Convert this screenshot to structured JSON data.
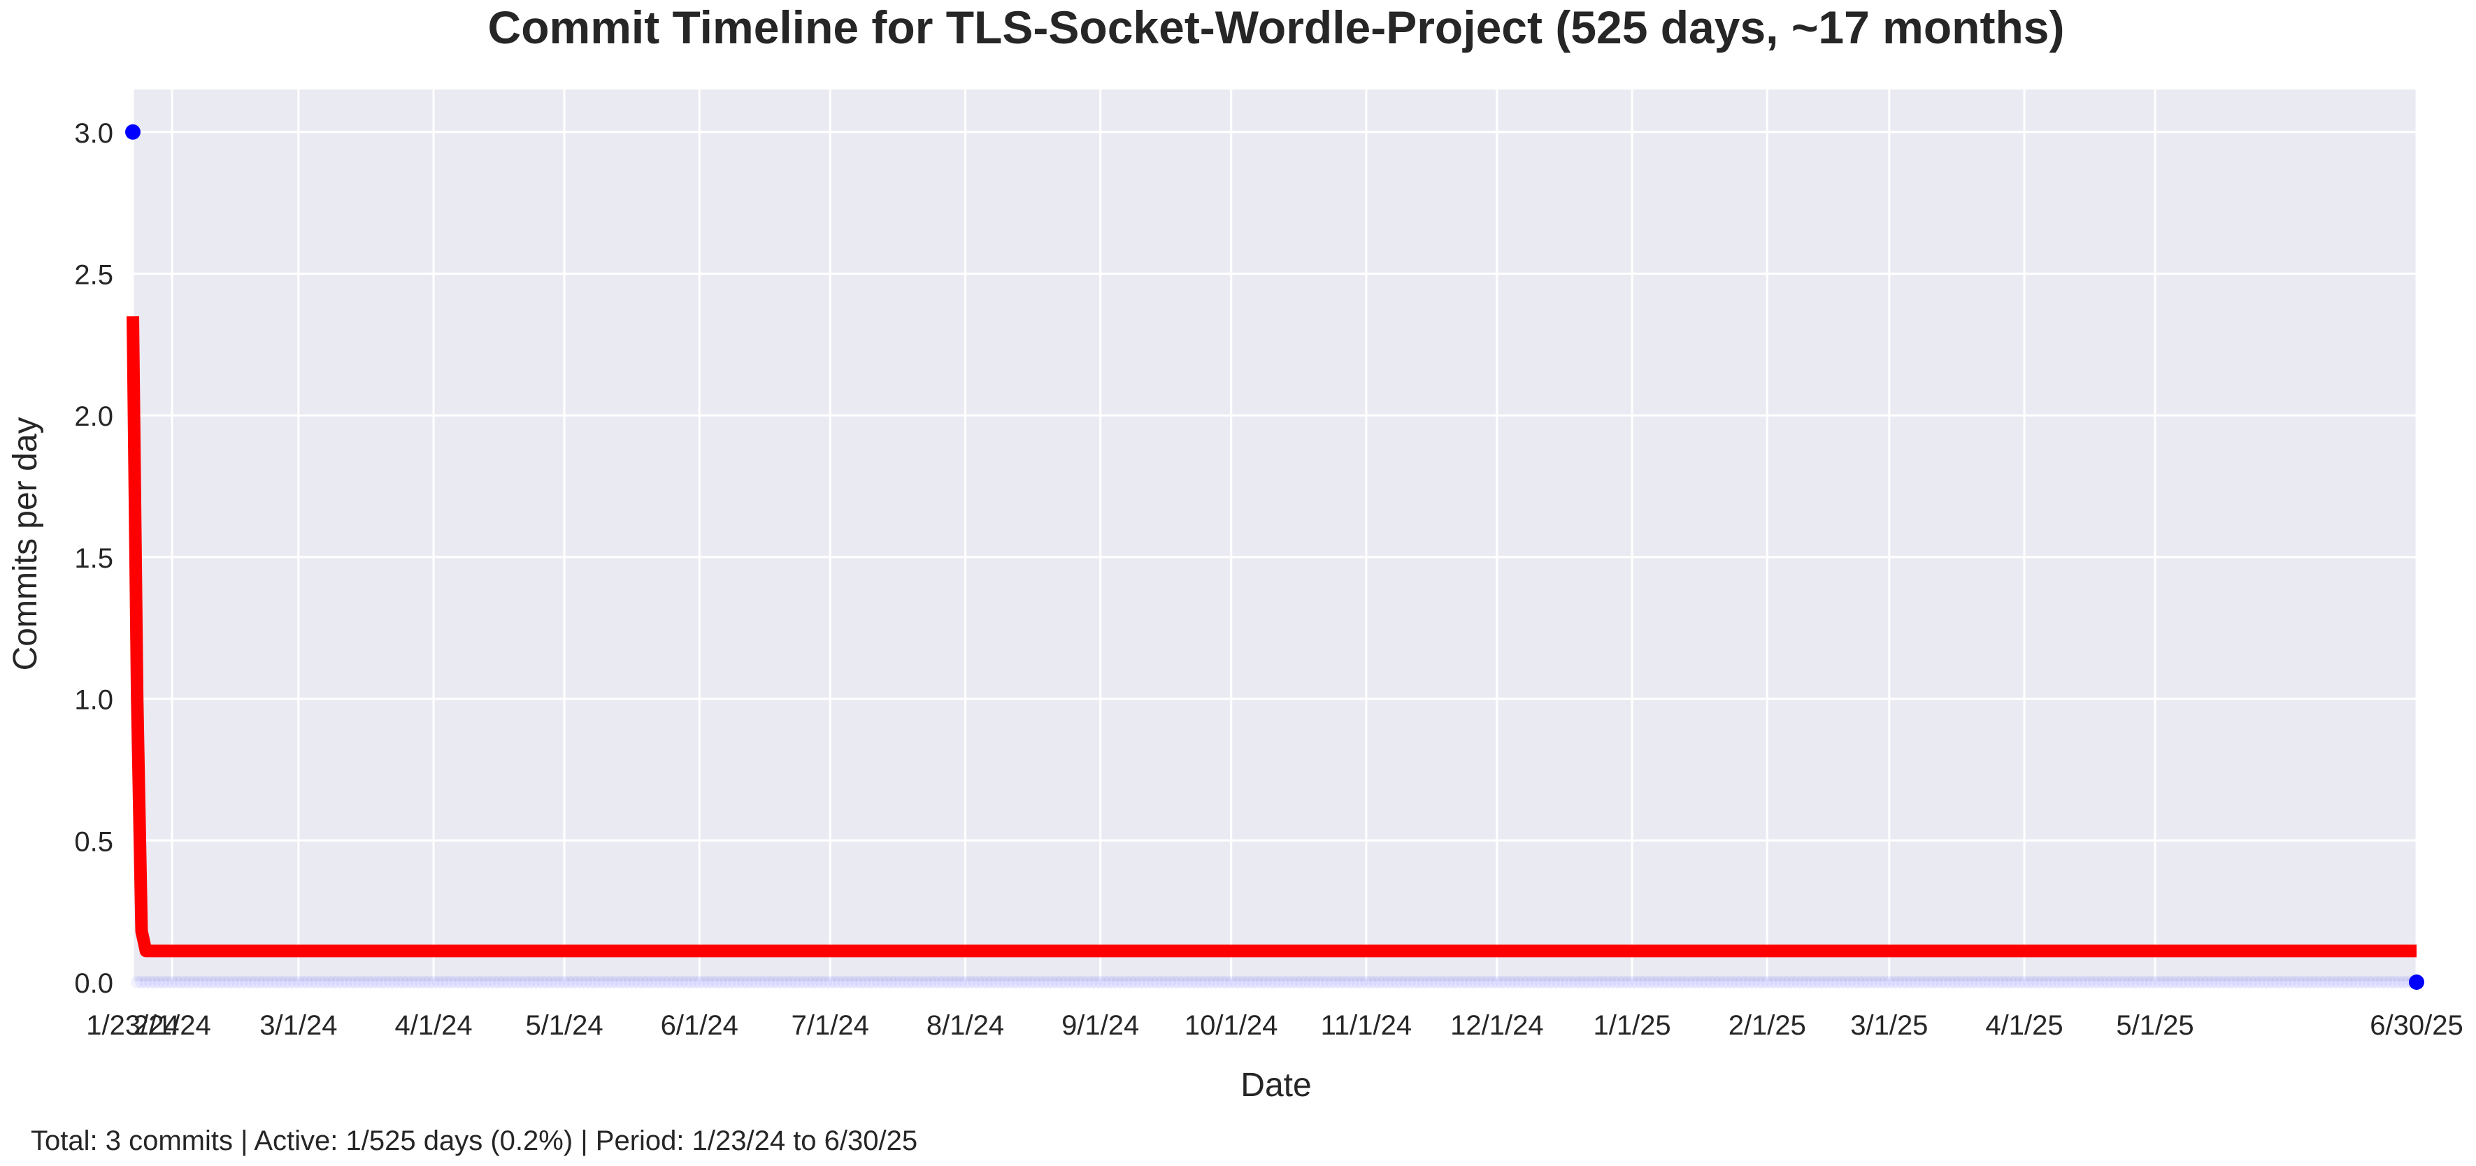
{
  "chart_data": {
    "type": "line",
    "title": "Commit Timeline for TLS-Socket-Wordle-Project (525 days, ~17 months)",
    "xlabel": "Date",
    "ylabel": "Commits per day",
    "x_range": [
      "2024-01-23",
      "2025-06-30"
    ],
    "ylim": [
      0,
      3.15
    ],
    "y_ticks": [
      0.0,
      0.5,
      1.0,
      1.5,
      2.0,
      2.5,
      3.0
    ],
    "y_tick_labels": [
      "0.0",
      "0.5",
      "1.0",
      "1.5",
      "2.0",
      "2.5",
      "3.0"
    ],
    "x_ticks": [
      {
        "date": "2024-01-23",
        "label": "1/23/24"
      },
      {
        "date": "2024-02-01",
        "label": "2/1/24"
      },
      {
        "date": "2024-03-01",
        "label": "3/1/24"
      },
      {
        "date": "2024-04-01",
        "label": "4/1/24"
      },
      {
        "date": "2024-05-01",
        "label": "5/1/24"
      },
      {
        "date": "2024-06-01",
        "label": "6/1/24"
      },
      {
        "date": "2024-07-01",
        "label": "7/1/24"
      },
      {
        "date": "2024-08-01",
        "label": "8/1/24"
      },
      {
        "date": "2024-09-01",
        "label": "9/1/24"
      },
      {
        "date": "2024-10-01",
        "label": "10/1/24"
      },
      {
        "date": "2024-11-01",
        "label": "11/1/24"
      },
      {
        "date": "2024-12-01",
        "label": "12/1/24"
      },
      {
        "date": "2025-01-01",
        "label": "1/1/25"
      },
      {
        "date": "2025-02-01",
        "label": "2/1/25"
      },
      {
        "date": "2025-03-01",
        "label": "3/1/25"
      },
      {
        "date": "2025-04-01",
        "label": "4/1/25"
      },
      {
        "date": "2025-05-01",
        "label": "5/1/25"
      },
      {
        "date": "2025-06-30",
        "label": "6/30/25"
      }
    ],
    "grid": true,
    "series": [
      {
        "kind": "daily-points",
        "color": "#0000ff",
        "nonzero_points": [
          {
            "x": "2024-01-23",
            "y": 3
          }
        ],
        "zero_days_between": [
          "2024-01-24",
          "2025-06-29"
        ],
        "last_point": {
          "x": "2025-06-30",
          "y": 0
        }
      },
      {
        "kind": "trend-line",
        "color": "#ff0000",
        "points": [
          {
            "x": "2024-01-23",
            "y": 2.35
          },
          {
            "x": "2024-01-24",
            "y": 1.0
          },
          {
            "x": "2024-01-25",
            "y": 0.18
          },
          {
            "x": "2024-01-26",
            "y": 0.11
          },
          {
            "x": "2025-06-30",
            "y": 0.11
          }
        ]
      }
    ]
  },
  "summary_text": "Total: 3 commits | Active: 1/525 days (0.2%) | Period: 1/23/24 to 6/30/25",
  "colors": {
    "plot_background": "#eaeaf2",
    "grid": "#ffffff",
    "text": "#262626"
  }
}
